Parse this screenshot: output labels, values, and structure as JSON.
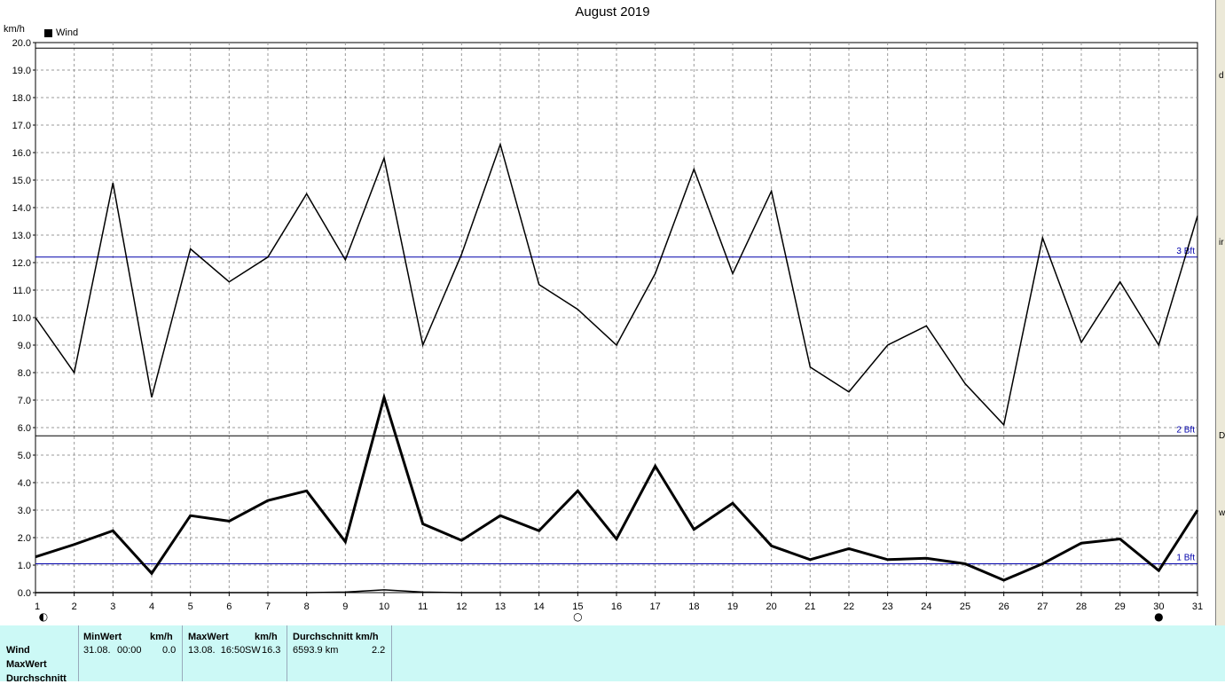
{
  "title": "August 2019",
  "unit": "km/h",
  "legend": {
    "label": "Wind"
  },
  "side_frame": {
    "chars": [
      "d",
      "ir",
      "D",
      "w"
    ]
  },
  "chart_data": {
    "type": "line",
    "title": "August 2019",
    "xlabel": "",
    "ylabel": "km/h",
    "xlim": [
      1,
      31
    ],
    "ylim": [
      0,
      20
    ],
    "x_ticks": [
      "1",
      "2",
      "3",
      "4",
      "5",
      "6",
      "7",
      "8",
      "9",
      "10",
      "11",
      "12",
      "13",
      "14",
      "15",
      "16",
      "17",
      "18",
      "19",
      "20",
      "21",
      "22",
      "23",
      "24",
      "25",
      "26",
      "27",
      "28",
      "29",
      "30",
      "31"
    ],
    "y_ticks": [
      "0.0",
      "1.0",
      "2.0",
      "3.0",
      "4.0",
      "5.0",
      "6.0",
      "7.0",
      "8.0",
      "9.0",
      "10.0",
      "11.0",
      "12.0",
      "13.0",
      "14.0",
      "15.0",
      "16.0",
      "17.0",
      "18.0",
      "19.0",
      "20.0"
    ],
    "grid": true,
    "legend_position": "top-left",
    "x": [
      1,
      2,
      3,
      4,
      5,
      6,
      7,
      8,
      9,
      10,
      11,
      12,
      13,
      14,
      15,
      16,
      17,
      18,
      19,
      20,
      21,
      22,
      23,
      24,
      25,
      26,
      27,
      28,
      29,
      30,
      31
    ],
    "series": [
      {
        "name": "Wind",
        "line_width": "thin",
        "values": [
          10.0,
          8.0,
          14.9,
          7.1,
          12.5,
          11.3,
          12.2,
          14.5,
          12.1,
          15.8,
          9.0,
          12.3,
          16.3,
          11.2,
          10.3,
          9.0,
          11.6,
          15.4,
          11.6,
          14.6,
          8.2,
          7.3,
          9.0,
          9.7,
          7.6,
          6.1,
          12.9,
          9.1,
          11.3,
          9.0,
          13.7
        ]
      },
      {
        "line_width": "thick",
        "values": [
          1.3,
          1.75,
          2.25,
          0.7,
          2.8,
          2.6,
          3.35,
          3.7,
          1.85,
          7.1,
          2.5,
          1.9,
          2.8,
          2.25,
          3.7,
          1.95,
          4.6,
          2.3,
          3.25,
          1.7,
          1.2,
          1.6,
          1.2,
          1.25,
          1.05,
          0.45,
          1.05,
          1.8,
          1.95,
          0.8,
          3.0
        ]
      },
      {
        "line_width": "thin",
        "values": [
          0,
          0,
          0,
          0,
          0,
          0,
          0,
          0,
          0.02,
          0.1,
          0.02,
          0,
          0,
          0,
          0,
          0,
          0,
          0,
          0,
          0,
          0,
          0,
          0,
          0,
          0,
          0,
          0,
          0,
          0,
          0,
          0
        ]
      }
    ],
    "reference_lines": [
      {
        "label": "3 Bft",
        "value": 12.2,
        "color": "#0000aa"
      },
      {
        "label": "2 Bft",
        "value": 5.7,
        "color": "#000000"
      },
      {
        "label": "1 Bft",
        "value": 1.05,
        "color": "#0000aa"
      },
      {
        "label": "",
        "value": 19.8,
        "color": "#000000"
      }
    ],
    "moon_phases": [
      {
        "day": 1,
        "symbol": "◐"
      },
      {
        "day": 15,
        "symbol": "○"
      },
      {
        "day": 30,
        "symbol": "●"
      }
    ]
  },
  "stats": {
    "row_labels": [
      "Wind",
      "MaxWert",
      "Durchschnitt"
    ],
    "min": {
      "header": "MinWert",
      "unit": "km/h",
      "date": "31.08.",
      "time": "00:00",
      "value": "0.0"
    },
    "max": {
      "header": "MaxWert",
      "unit": "km/h",
      "datetime": "13.08.  16:50",
      "dir": "SW",
      "value": "16.3"
    },
    "avg": {
      "header": "Durchschnitt km/h",
      "distance": "6593.9 km",
      "value": "2.2"
    }
  }
}
